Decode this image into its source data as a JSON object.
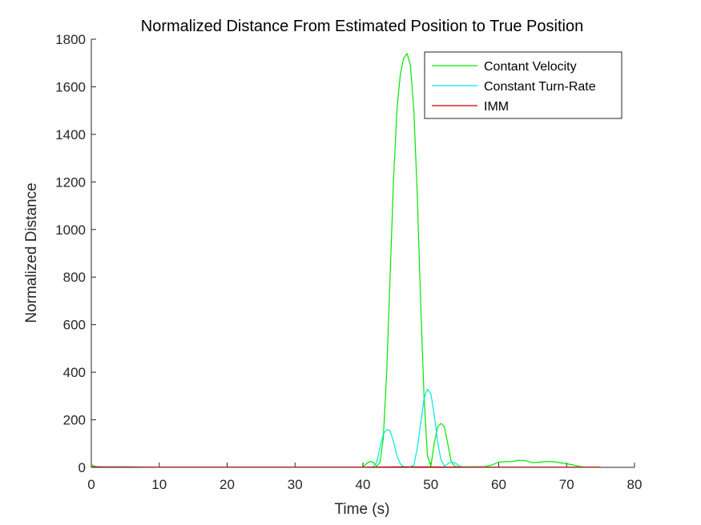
{
  "chart_data": {
    "type": "line",
    "title": "Normalized Distance From Estimated Position to True Position",
    "xlabel": "Time (s)",
    "ylabel": "Normalized Distance",
    "xlim": [
      0,
      80
    ],
    "ylim": [
      0,
      1800
    ],
    "xticks": [
      "0",
      "10",
      "20",
      "30",
      "40",
      "50",
      "60",
      "70",
      "80"
    ],
    "yticks": [
      "0",
      "200",
      "400",
      "600",
      "800",
      "1000",
      "1200",
      "1400",
      "1600",
      "1800"
    ],
    "grid": false,
    "legend_location": "top-right",
    "series": [
      {
        "name": "Contant Velocity",
        "color": "#00e600",
        "points": [
          [
            0,
            12
          ],
          [
            0.5,
            5
          ],
          [
            1,
            2
          ],
          [
            5,
            2
          ],
          [
            10,
            1
          ],
          [
            20,
            1
          ],
          [
            30,
            1
          ],
          [
            40,
            1
          ],
          [
            40.5,
            15
          ],
          [
            41,
            25
          ],
          [
            41.5,
            22
          ],
          [
            42,
            5
          ],
          [
            42.5,
            20
          ],
          [
            43,
            120
          ],
          [
            43.5,
            400
          ],
          [
            44,
            800
          ],
          [
            44.5,
            1200
          ],
          [
            45,
            1500
          ],
          [
            45.5,
            1650
          ],
          [
            46,
            1720
          ],
          [
            46.5,
            1740
          ],
          [
            47,
            1690
          ],
          [
            47.5,
            1500
          ],
          [
            48,
            1150
          ],
          [
            48.5,
            700
          ],
          [
            49,
            300
          ],
          [
            49.5,
            50
          ],
          [
            50,
            5
          ],
          [
            50.5,
            100
          ],
          [
            51,
            170
          ],
          [
            51.5,
            185
          ],
          [
            52,
            170
          ],
          [
            52.5,
            100
          ],
          [
            53,
            25
          ],
          [
            53.5,
            4
          ],
          [
            55,
            2
          ],
          [
            58,
            3
          ],
          [
            59,
            10
          ],
          [
            60,
            22
          ],
          [
            61,
            24
          ],
          [
            62,
            25
          ],
          [
            63,
            30
          ],
          [
            64,
            28
          ],
          [
            65,
            20
          ],
          [
            66,
            22
          ],
          [
            67,
            25
          ],
          [
            68,
            24
          ],
          [
            69,
            20
          ],
          [
            70,
            15
          ],
          [
            71,
            10
          ],
          [
            72,
            3
          ],
          [
            73,
            1
          ],
          [
            75,
            1
          ]
        ]
      },
      {
        "name": "Constant Turn-Rate",
        "color": "#00e6e6",
        "points": [
          [
            0,
            3
          ],
          [
            5,
            2
          ],
          [
            10,
            1
          ],
          [
            20,
            1
          ],
          [
            30,
            1
          ],
          [
            40,
            1
          ],
          [
            41.5,
            2
          ],
          [
            42,
            20
          ],
          [
            42.5,
            80
          ],
          [
            43,
            140
          ],
          [
            43.5,
            158
          ],
          [
            44,
            155
          ],
          [
            44.5,
            110
          ],
          [
            45,
            50
          ],
          [
            45.5,
            15
          ],
          [
            46,
            3
          ],
          [
            47,
            1
          ],
          [
            47.5,
            10
          ],
          [
            48,
            80
          ],
          [
            48.5,
            180
          ],
          [
            49,
            290
          ],
          [
            49.5,
            328
          ],
          [
            50,
            310
          ],
          [
            50.5,
            220
          ],
          [
            51,
            110
          ],
          [
            51.5,
            30
          ],
          [
            52,
            5
          ],
          [
            52.5,
            15
          ],
          [
            53,
            22
          ],
          [
            53.5,
            20
          ],
          [
            54,
            10
          ],
          [
            54.5,
            2
          ],
          [
            56,
            1
          ],
          [
            60,
            1
          ],
          [
            70,
            1
          ],
          [
            75,
            1
          ]
        ]
      },
      {
        "name": "IMM",
        "color": "#cc0000",
        "points": [
          [
            0,
            2
          ],
          [
            2,
            1
          ],
          [
            5,
            1
          ],
          [
            10,
            1
          ],
          [
            20,
            1
          ],
          [
            30,
            1
          ],
          [
            40,
            1
          ],
          [
            45,
            2
          ],
          [
            50,
            2
          ],
          [
            55,
            1
          ],
          [
            60,
            1
          ],
          [
            65,
            1
          ],
          [
            70,
            1
          ],
          [
            75,
            1
          ]
        ]
      }
    ]
  }
}
